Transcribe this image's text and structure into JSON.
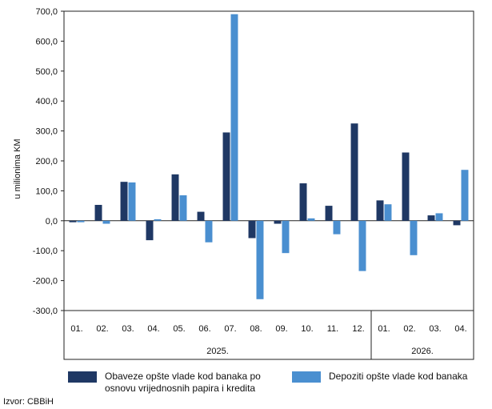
{
  "chart_data": {
    "type": "bar",
    "ylabel": "u milionima KM",
    "ylim": [
      -300,
      700
    ],
    "yticks": [
      "700,0",
      "600,0",
      "500,0",
      "400,0",
      "300,0",
      "200,0",
      "100,0",
      "0,0",
      "-100,0",
      "-200,0",
      "-300,0"
    ],
    "ytick_values": [
      700,
      600,
      500,
      400,
      300,
      200,
      100,
      0,
      -100,
      -200,
      -300
    ],
    "categories": [
      "01.",
      "02.",
      "03.",
      "04.",
      "05.",
      "06.",
      "07.",
      "08.",
      "09.",
      "10.",
      "11.",
      "12.",
      "01.",
      "02.",
      "03.",
      "04."
    ],
    "groups": [
      {
        "label": "2025.",
        "count": 12
      },
      {
        "label": "2026.",
        "count": 4
      }
    ],
    "series": [
      {
        "name": "Obaveze opšte vlade kod banaka po osnovu vrijednosnih papira i kredita",
        "color": "#1f3864",
        "values": [
          -5,
          53,
          130,
          -65,
          155,
          30,
          295,
          -58,
          -10,
          125,
          50,
          325,
          68,
          228,
          18,
          -15
        ]
      },
      {
        "name": "Depoziti opšte vlade kod banaka",
        "color": "#4a8fd0",
        "values": [
          -5,
          -10,
          128,
          5,
          85,
          -72,
          690,
          -262,
          -108,
          8,
          -45,
          -168,
          55,
          -115,
          25,
          170
        ]
      }
    ],
    "grid": false,
    "legend_position": "bottom"
  },
  "legend": {
    "item1_line1": "Obaveze opšte vlade kod banaka po",
    "item1_line2": "osnovu vrijednosnih papira i kredita",
    "item2": "Depoziti opšte vlade kod banaka"
  },
  "source": "Izvor: CBBiH"
}
